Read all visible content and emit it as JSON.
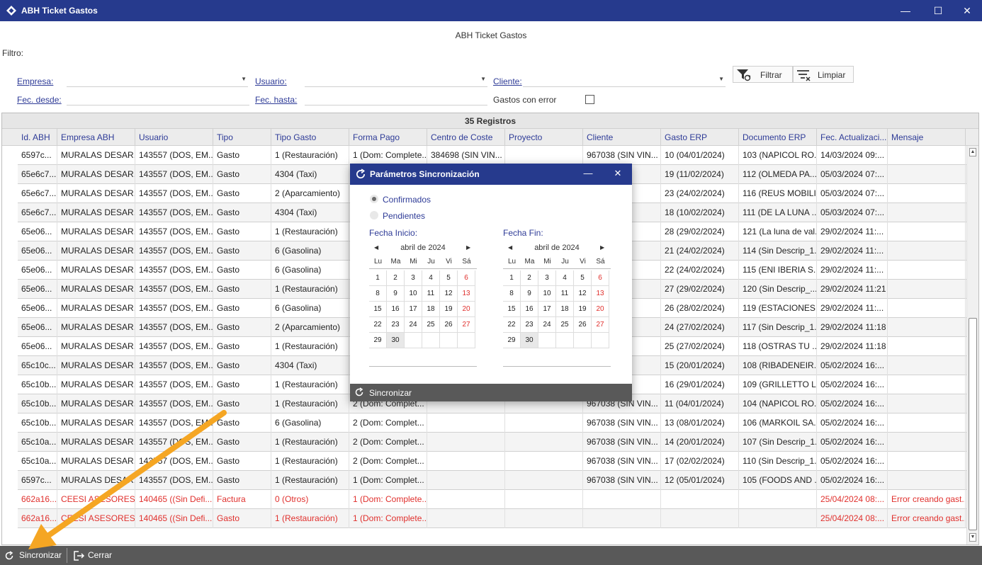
{
  "window": {
    "title": "ABH Ticket Gastos",
    "minimize": "—",
    "maximize": "☐",
    "close": "✕"
  },
  "page": {
    "heading": "ABH Ticket Gastos",
    "filter_label": "Filtro:"
  },
  "filters": {
    "empresa_label": "Empresa:",
    "usuario_label": "Usuario:",
    "cliente_label": "Cliente:",
    "fec_desde_label": "Fec. desde:",
    "fec_hasta_label": "Fec. hasta:",
    "gastos_error_label": "Gastos con error",
    "filtrar_label": "Filtrar",
    "limpiar_label": "Limpiar"
  },
  "grid": {
    "count_label": "35 Registros",
    "columns": [
      "Id. ABH",
      "Empresa ABH",
      "Usuario",
      "Tipo",
      "Tipo Gasto",
      "Forma Pago",
      "Centro de Coste",
      "Proyecto",
      "Cliente",
      "Gasto ERP",
      "Documento ERP",
      "Fec. Actualizaci...",
      "Mensaje"
    ],
    "rows": [
      {
        "id": "6597c...",
        "empresa": "MURALAS DESAR...",
        "usuario": "143557 (DOS, EM...",
        "tipo": "Gasto",
        "tipo_gasto": "1 (Restauración)",
        "forma_pago": "1 (Dom: Complete...",
        "centro": "384698 (SIN VIN...",
        "proyecto": "",
        "cliente": "967038 (SIN VIN...",
        "gasto_erp": "10 (04/01/2024)",
        "documento": "103 (NAPICOL RO...",
        "fecha": "14/03/2024 09:...",
        "mensaje": "",
        "error": false
      },
      {
        "id": "65e6c7...",
        "empresa": "MURALAS DESAR...",
        "usuario": "143557 (DOS, EM...",
        "tipo": "Gasto",
        "tipo_gasto": "4304 (Taxi)",
        "forma_pago": "",
        "centro": "",
        "proyecto": "",
        "cliente": "",
        "gasto_erp": "19 (11/02/2024)",
        "documento": "112 (OLMEDA PA...",
        "fecha": "05/03/2024 07:...",
        "mensaje": "",
        "error": false
      },
      {
        "id": "65e6c7...",
        "empresa": "MURALAS DESAR...",
        "usuario": "143557 (DOS, EM...",
        "tipo": "Gasto",
        "tipo_gasto": "2 (Aparcamiento)",
        "forma_pago": "",
        "centro": "",
        "proyecto": "",
        "cliente": "",
        "gasto_erp": "23 (24/02/2024)",
        "documento": "116 (REUS MOBILI...",
        "fecha": "05/03/2024 07:...",
        "mensaje": "",
        "error": false
      },
      {
        "id": "65e6c7...",
        "empresa": "MURALAS DESAR...",
        "usuario": "143557 (DOS, EM...",
        "tipo": "Gasto",
        "tipo_gasto": "4304 (Taxi)",
        "forma_pago": "",
        "centro": "",
        "proyecto": "",
        "cliente": "",
        "gasto_erp": "18 (10/02/2024)",
        "documento": "111 (DE LA LUNA ...",
        "fecha": "05/03/2024 07:...",
        "mensaje": "",
        "error": false
      },
      {
        "id": "65e06...",
        "empresa": "MURALAS DESAR...",
        "usuario": "143557 (DOS, EM...",
        "tipo": "Gasto",
        "tipo_gasto": "1 (Restauración)",
        "forma_pago": "",
        "centro": "",
        "proyecto": "",
        "cliente": "",
        "gasto_erp": "28 (29/02/2024)",
        "documento": "121 (La luna de val...",
        "fecha": "29/02/2024 11:...",
        "mensaje": "",
        "error": false
      },
      {
        "id": "65e06...",
        "empresa": "MURALAS DESAR...",
        "usuario": "143557 (DOS, EM...",
        "tipo": "Gasto",
        "tipo_gasto": "6 (Gasolina)",
        "forma_pago": "",
        "centro": "",
        "proyecto": "",
        "cliente": "",
        "gasto_erp": "21 (24/02/2024)",
        "documento": "114 (Sin Descrip_1...",
        "fecha": "29/02/2024 11:...",
        "mensaje": "",
        "error": false
      },
      {
        "id": "65e06...",
        "empresa": "MURALAS DESAR...",
        "usuario": "143557 (DOS, EM...",
        "tipo": "Gasto",
        "tipo_gasto": "6 (Gasolina)",
        "forma_pago": "",
        "centro": "",
        "proyecto": "",
        "cliente": "",
        "gasto_erp": "22 (24/02/2024)",
        "documento": "115 (ENI IBERIA S...",
        "fecha": "29/02/2024 11:...",
        "mensaje": "",
        "error": false
      },
      {
        "id": "65e06...",
        "empresa": "MURALAS DESAR...",
        "usuario": "143557 (DOS, EM...",
        "tipo": "Gasto",
        "tipo_gasto": "1 (Restauración)",
        "forma_pago": "",
        "centro": "",
        "proyecto": "",
        "cliente": "",
        "gasto_erp": "27 (29/02/2024)",
        "documento": "120 (Sin Descrip_...",
        "fecha": "29/02/2024 11:21",
        "mensaje": "",
        "error": false
      },
      {
        "id": "65e06...",
        "empresa": "MURALAS DESAR...",
        "usuario": "143557 (DOS, EM...",
        "tipo": "Gasto",
        "tipo_gasto": "6 (Gasolina)",
        "forma_pago": "",
        "centro": "",
        "proyecto": "",
        "cliente": "",
        "gasto_erp": "26 (28/02/2024)",
        "documento": "119 (ESTACIONES...",
        "fecha": "29/02/2024 11:...",
        "mensaje": "",
        "error": false
      },
      {
        "id": "65e06...",
        "empresa": "MURALAS DESAR...",
        "usuario": "143557 (DOS, EM...",
        "tipo": "Gasto",
        "tipo_gasto": "2 (Aparcamiento)",
        "forma_pago": "",
        "centro": "",
        "proyecto": "",
        "cliente": "",
        "gasto_erp": "24 (27/02/2024)",
        "documento": "117 (Sin Descrip_1...",
        "fecha": "29/02/2024 11:18",
        "mensaje": "",
        "error": false
      },
      {
        "id": "65e06...",
        "empresa": "MURALAS DESAR...",
        "usuario": "143557 (DOS, EM...",
        "tipo": "Gasto",
        "tipo_gasto": "1 (Restauración)",
        "forma_pago": "",
        "centro": "",
        "proyecto": "",
        "cliente": "",
        "gasto_erp": "25 (27/02/2024)",
        "documento": "118 (OSTRAS TU ...",
        "fecha": "29/02/2024 11:18",
        "mensaje": "",
        "error": false
      },
      {
        "id": "65c10c...",
        "empresa": "MURALAS DESAR...",
        "usuario": "143557 (DOS, EM...",
        "tipo": "Gasto",
        "tipo_gasto": "4304 (Taxi)",
        "forma_pago": "",
        "centro": "",
        "proyecto": "",
        "cliente": "",
        "gasto_erp": "15 (20/01/2024)",
        "documento": "108 (RIBADENEIR...",
        "fecha": "05/02/2024 16:...",
        "mensaje": "",
        "error": false
      },
      {
        "id": "65c10b...",
        "empresa": "MURALAS DESAR...",
        "usuario": "143557 (DOS, EM...",
        "tipo": "Gasto",
        "tipo_gasto": "1 (Restauración)",
        "forma_pago": "",
        "centro": "",
        "proyecto": "",
        "cliente": "",
        "gasto_erp": "16 (29/01/2024)",
        "documento": "109 (GRILLETTO L...",
        "fecha": "05/02/2024 16:...",
        "mensaje": "",
        "error": false
      },
      {
        "id": "65c10b...",
        "empresa": "MURALAS DESAR...",
        "usuario": "143557 (DOS, EM...",
        "tipo": "Gasto",
        "tipo_gasto": "1 (Restauración)",
        "forma_pago": "2 (Dom: Complet...",
        "centro": "",
        "proyecto": "",
        "cliente": "967038 (SIN VIN...",
        "gasto_erp": "11 (04/01/2024)",
        "documento": "104 (NAPICOL RO...",
        "fecha": "05/02/2024 16:...",
        "mensaje": "",
        "error": false
      },
      {
        "id": "65c10b...",
        "empresa": "MURALAS DESAR...",
        "usuario": "143557 (DOS, EM...",
        "tipo": "Gasto",
        "tipo_gasto": "6 (Gasolina)",
        "forma_pago": "2 (Dom: Complet...",
        "centro": "",
        "proyecto": "",
        "cliente": "967038 (SIN VIN...",
        "gasto_erp": "13 (08/01/2024)",
        "documento": "106 (MARKOIL SA...",
        "fecha": "05/02/2024 16:...",
        "mensaje": "",
        "error": false
      },
      {
        "id": "65c10a...",
        "empresa": "MURALAS DESAR...",
        "usuario": "143557 (DOS, EM...",
        "tipo": "Gasto",
        "tipo_gasto": "1 (Restauración)",
        "forma_pago": "2 (Dom: Complet...",
        "centro": "",
        "proyecto": "",
        "cliente": "967038 (SIN VIN...",
        "gasto_erp": "14 (20/01/2024)",
        "documento": "107 (Sin Descrip_1...",
        "fecha": "05/02/2024 16:...",
        "mensaje": "",
        "error": false
      },
      {
        "id": "65c10a...",
        "empresa": "MURALAS DESAR...",
        "usuario": "143557 (DOS, EM...",
        "tipo": "Gasto",
        "tipo_gasto": "1 (Restauración)",
        "forma_pago": "2 (Dom: Complet...",
        "centro": "",
        "proyecto": "",
        "cliente": "967038 (SIN VIN...",
        "gasto_erp": "17 (02/02/2024)",
        "documento": "110 (Sin Descrip_1...",
        "fecha": "05/02/2024 16:...",
        "mensaje": "",
        "error": false
      },
      {
        "id": "6597c...",
        "empresa": "MURALAS DESAR...",
        "usuario": "143557 (DOS, EM...",
        "tipo": "Gasto",
        "tipo_gasto": "1 (Restauración)",
        "forma_pago": "1 (Dom: Complet...",
        "centro": "",
        "proyecto": "",
        "cliente": "967038 (SIN VIN...",
        "gasto_erp": "12 (05/01/2024)",
        "documento": "105 (FOODS AND ...",
        "fecha": "05/02/2024 16:...",
        "mensaje": "",
        "error": false
      },
      {
        "id": "662a16...",
        "empresa": "CEESI ASESORES...",
        "usuario": "140465 ((Sin Defi...",
        "tipo": "Factura",
        "tipo_gasto": "0 (Otros)",
        "forma_pago": "1 (Dom: Complete...",
        "centro": "",
        "proyecto": "",
        "cliente": "",
        "gasto_erp": "",
        "documento": "",
        "fecha": "25/04/2024 08:...",
        "mensaje": "Error creando gast...",
        "error": true
      },
      {
        "id": "662a16...",
        "empresa": "CEESI ASESORES...",
        "usuario": "140465 ((Sin Defi...",
        "tipo": "Gasto",
        "tipo_gasto": "1 (Restauración)",
        "forma_pago": "1 (Dom: Complete...",
        "centro": "",
        "proyecto": "",
        "cliente": "",
        "gasto_erp": "",
        "documento": "",
        "fecha": "25/04/2024 08:...",
        "mensaje": "Error creando gast...",
        "error": true
      }
    ]
  },
  "bottombar": {
    "sincronizar_label": "Sincronizar",
    "cerrar_label": "Cerrar"
  },
  "dialog": {
    "title": "Parámetros Sincronización",
    "minimize": "—",
    "close": "✕",
    "opt_confirmados": "Confirmados",
    "opt_pendientes": "Pendientes",
    "selected_option": "Confirmados",
    "fecha_inicio_label": "Fecha Inicio:",
    "fecha_fin_label": "Fecha Fin:",
    "month_label": "abril de 2024",
    "weekdays": [
      "Lu",
      "Ma",
      "Mi",
      "Ju",
      "Vi",
      "Sá"
    ],
    "days": [
      "1",
      "2",
      "3",
      "4",
      "5",
      "6",
      "8",
      "9",
      "10",
      "11",
      "12",
      "13",
      "15",
      "16",
      "17",
      "18",
      "19",
      "20",
      "22",
      "23",
      "24",
      "25",
      "26",
      "27",
      "29",
      "30"
    ],
    "selected_day": "30",
    "footer_button": "Sincronizar"
  },
  "colors": {
    "titlebar": "#263a8d",
    "link_label": "#2e3b97",
    "error_text": "#e0302d",
    "bottom_bar": "#595959",
    "annotation_arrow": "#f5a623"
  }
}
